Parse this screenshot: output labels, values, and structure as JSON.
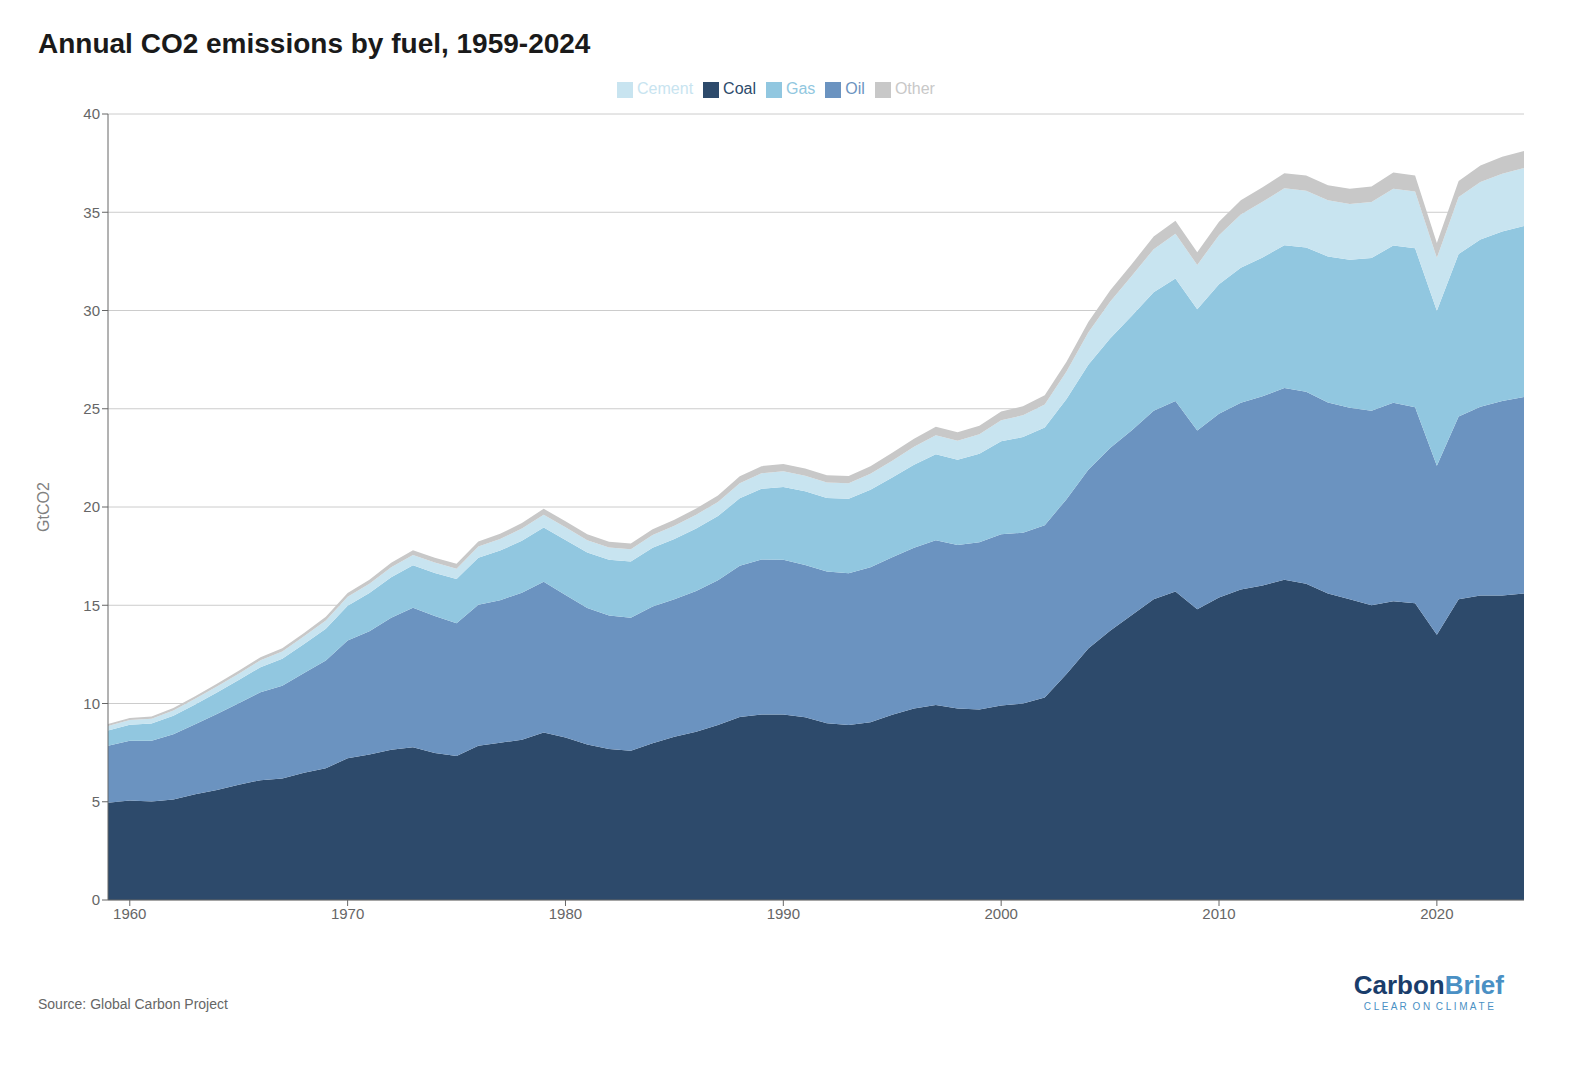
{
  "chart_data": {
    "type": "area",
    "stacked": true,
    "title": "Annual CO2 emissions by fuel, 1959-2024",
    "y_label": "GtCO2",
    "annotations": [
      {
        "text": "Source: Global Carbon Project",
        "color": "#666666"
      },
      {
        "text": "Carbon",
        "color": "#1a3d6b"
      },
      {
        "text": "Brief",
        "color": "#4a90c4"
      },
      {
        "text": "C L E A R  O N  C L I M A T E",
        "color": "#4a90c4"
      }
    ],
    "x": [
      1959,
      1960,
      1961,
      1962,
      1963,
      1964,
      1965,
      1966,
      1967,
      1968,
      1969,
      1970,
      1971,
      1972,
      1973,
      1974,
      1975,
      1976,
      1977,
      1978,
      1979,
      1980,
      1981,
      1982,
      1983,
      1984,
      1985,
      1986,
      1987,
      1988,
      1989,
      1990,
      1991,
      1992,
      1993,
      1994,
      1995,
      1996,
      1997,
      1998,
      1999,
      2000,
      2001,
      2002,
      2003,
      2004,
      2005,
      2006,
      2007,
      2008,
      2009,
      2010,
      2011,
      2012,
      2013,
      2014,
      2015,
      2016,
      2017,
      2018,
      2019,
      2020,
      2021,
      2022,
      2023,
      2024
    ],
    "series": [
      {
        "name": "Coal",
        "color": "#2d4a6b",
        "values": [
          4.95,
          5.07,
          5.01,
          5.12,
          5.38,
          5.6,
          5.87,
          6.1,
          6.18,
          6.48,
          6.7,
          7.22,
          7.4,
          7.65,
          7.77,
          7.48,
          7.33,
          7.85,
          8.0,
          8.16,
          8.52,
          8.27,
          7.91,
          7.68,
          7.59,
          7.98,
          8.31,
          8.56,
          8.9,
          9.31,
          9.44,
          9.44,
          9.3,
          9.0,
          8.9,
          9.05,
          9.43,
          9.75,
          9.93,
          9.75,
          9.7,
          9.9,
          10.0,
          10.3,
          11.5,
          12.8,
          13.7,
          14.5,
          15.3,
          15.7,
          14.8,
          15.4,
          15.8,
          16.0,
          16.3,
          16.1,
          15.6,
          15.3,
          15.0,
          15.2,
          15.1,
          13.5,
          15.3,
          15.5,
          15.5,
          15.6
        ]
      },
      {
        "name": "Oil",
        "color": "#6b93c0",
        "values": [
          2.9,
          3.03,
          3.1,
          3.32,
          3.56,
          3.86,
          4.14,
          4.47,
          4.72,
          5.07,
          5.49,
          5.98,
          6.28,
          6.71,
          7.1,
          6.97,
          6.76,
          7.17,
          7.26,
          7.47,
          7.68,
          7.25,
          6.95,
          6.8,
          6.77,
          6.96,
          6.99,
          7.17,
          7.37,
          7.7,
          7.89,
          7.87,
          7.75,
          7.72,
          7.73,
          7.89,
          8.01,
          8.17,
          8.38,
          8.31,
          8.5,
          8.71,
          8.69,
          8.77,
          8.9,
          9.1,
          9.3,
          9.41,
          9.6,
          9.7,
          9.09,
          9.35,
          9.5,
          9.64,
          9.75,
          9.76,
          9.72,
          9.75,
          9.9,
          10.1,
          9.98,
          8.6,
          9.3,
          9.6,
          9.9,
          10.0
        ]
      },
      {
        "name": "Gas",
        "color": "#91c7e0",
        "values": [
          0.78,
          0.82,
          0.87,
          0.94,
          1.01,
          1.1,
          1.18,
          1.28,
          1.38,
          1.48,
          1.62,
          1.78,
          1.94,
          2.07,
          2.16,
          2.19,
          2.24,
          2.4,
          2.52,
          2.65,
          2.76,
          2.8,
          2.82,
          2.84,
          2.87,
          2.98,
          3.07,
          3.18,
          3.27,
          3.43,
          3.6,
          3.71,
          3.75,
          3.74,
          3.79,
          3.94,
          4.06,
          4.23,
          4.38,
          4.35,
          4.51,
          4.73,
          4.87,
          4.98,
          5.1,
          5.34,
          5.58,
          5.82,
          6.03,
          6.23,
          6.17,
          6.59,
          6.87,
          7.06,
          7.27,
          7.34,
          7.43,
          7.53,
          7.77,
          8.01,
          8.09,
          7.89,
          8.28,
          8.51,
          8.62,
          8.7
        ]
      },
      {
        "name": "Cement",
        "color": "#c8e4f0",
        "values": [
          0.23,
          0.24,
          0.25,
          0.27,
          0.29,
          0.31,
          0.33,
          0.35,
          0.37,
          0.39,
          0.42,
          0.45,
          0.48,
          0.51,
          0.53,
          0.53,
          0.53,
          0.57,
          0.59,
          0.62,
          0.65,
          0.65,
          0.63,
          0.62,
          0.62,
          0.65,
          0.67,
          0.7,
          0.72,
          0.77,
          0.79,
          0.8,
          0.79,
          0.79,
          0.79,
          0.81,
          0.86,
          0.91,
          0.96,
          0.96,
          0.99,
          1.07,
          1.11,
          1.17,
          1.39,
          1.64,
          1.87,
          2.04,
          2.19,
          2.27,
          2.26,
          2.49,
          2.72,
          2.83,
          2.9,
          2.9,
          2.86,
          2.84,
          2.85,
          2.89,
          2.88,
          2.69,
          2.89,
          2.93,
          2.94,
          2.95
        ]
      },
      {
        "name": "Other",
        "color": "#c8c8c8",
        "values": [
          0.1,
          0.1,
          0.11,
          0.12,
          0.13,
          0.14,
          0.15,
          0.16,
          0.16,
          0.17,
          0.18,
          0.19,
          0.2,
          0.22,
          0.24,
          0.25,
          0.25,
          0.26,
          0.27,
          0.28,
          0.3,
          0.3,
          0.3,
          0.29,
          0.29,
          0.3,
          0.31,
          0.32,
          0.33,
          0.35,
          0.36,
          0.37,
          0.37,
          0.37,
          0.37,
          0.38,
          0.4,
          0.41,
          0.43,
          0.43,
          0.44,
          0.45,
          0.46,
          0.47,
          0.5,
          0.54,
          0.57,
          0.6,
          0.64,
          0.67,
          0.65,
          0.69,
          0.72,
          0.74,
          0.76,
          0.77,
          0.77,
          0.78,
          0.79,
          0.82,
          0.82,
          0.75,
          0.82,
          0.84,
          0.86,
          0.87
        ]
      }
    ],
    "xlim": [
      1959,
      2024
    ],
    "xticks": [
      1960,
      1970,
      1980,
      1990,
      2000,
      2010,
      2020
    ],
    "ylim": [
      0,
      40
    ],
    "yticks": [
      0,
      5,
      10,
      15,
      20,
      25,
      30,
      35,
      40
    ],
    "grid": true,
    "legend": "top"
  }
}
